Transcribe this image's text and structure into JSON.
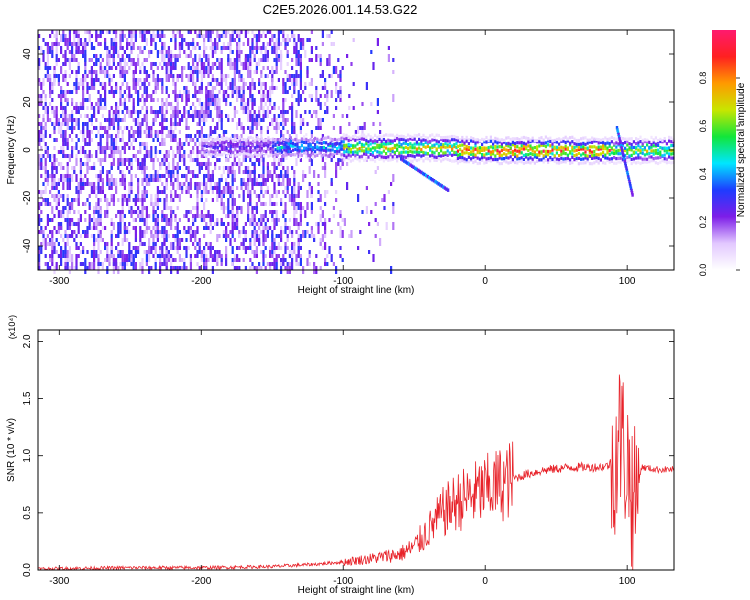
{
  "title": "C2E5.2026.001.14.53.G22",
  "chart_data": [
    {
      "type": "heatmap",
      "xlabel": "Height of straight line (km)",
      "ylabel": "Frequency (Hz)",
      "xlim": [
        -315,
        133
      ],
      "ylim": [
        -50,
        50
      ],
      "xticks": [
        -300,
        -200,
        -100,
        0,
        100
      ],
      "yticks": [
        -40,
        -20,
        0,
        20,
        40
      ],
      "colorbar": {
        "label": "Normalized spectral amplitude",
        "range": [
          0,
          1
        ],
        "ticks": [
          "0.0",
          "0.2",
          "0.4",
          "0.6",
          "0.8"
        ],
        "colormap": [
          "#ffffff",
          "#e2c8ff",
          "#7d1ee8",
          "#1e3cff",
          "#00e6ff",
          "#12e63a",
          "#c8e600",
          "#ff9a00",
          "#ff2020",
          "#ff1a6e"
        ]
      },
      "noise_region_x": [
        -315,
        -100
      ],
      "band_segments": [
        {
          "x": [
            -200,
            -150
          ],
          "center_freq": 2,
          "amplitude": 0.25
        },
        {
          "x": [
            -150,
            -100
          ],
          "center_freq": 2,
          "amplitude": 0.45
        },
        {
          "x": [
            -100,
            -20
          ],
          "center_freq": 1.5,
          "amplitude": 0.7
        },
        {
          "x": [
            -20,
            90
          ],
          "center_freq": 0.5,
          "amplitude": 0.85
        },
        {
          "x": [
            90,
            133
          ],
          "center_freq": 0.5,
          "amplitude": 0.65
        }
      ],
      "drift_tracks": [
        {
          "x": [
            -60,
            -27
          ],
          "freq": [
            -3,
            -16
          ]
        },
        {
          "x": [
            92,
            103
          ],
          "freq": [
            10,
            -18
          ]
        }
      ]
    },
    {
      "type": "line",
      "xlabel": "Height of straight line (km)",
      "ylabel": "SNR (10 * v/v)",
      "y_scale_note": "(x10⁴)",
      "xlim": [
        -315,
        133
      ],
      "ylim": [
        0,
        2.1
      ],
      "xticks": [
        -300,
        -200,
        -100,
        0,
        100
      ],
      "yticks": [
        "0.0",
        "0.5",
        "1.0",
        "1.5",
        "2.0"
      ],
      "series": [
        {
          "color": "#e8232a",
          "x": [
            -315,
            -250,
            -200,
            -150,
            -120,
            -100,
            -80,
            -60,
            -50,
            -40,
            -30,
            -20,
            -10,
            0,
            10,
            20,
            30,
            40,
            60,
            80,
            90,
            95,
            100,
            105,
            110,
            120,
            133
          ],
          "y": [
            0.01,
            0.02,
            0.02,
            0.03,
            0.05,
            0.07,
            0.1,
            0.14,
            0.2,
            0.35,
            0.5,
            0.6,
            0.65,
            0.7,
            0.75,
            0.8,
            0.84,
            0.87,
            0.9,
            0.9,
            0.92,
            1.2,
            0.95,
            0.55,
            0.9,
            0.88,
            0.88
          ]
        }
      ]
    }
  ]
}
